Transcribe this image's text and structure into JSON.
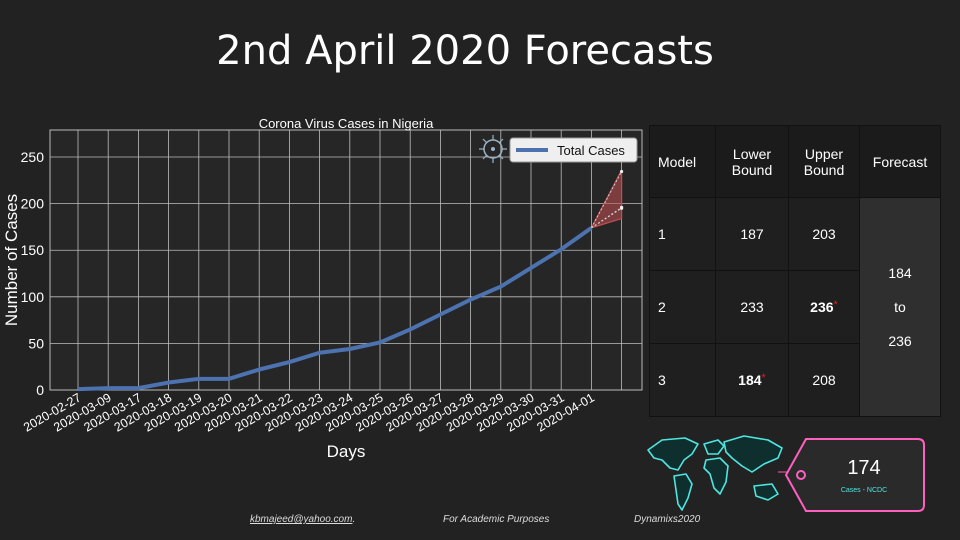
{
  "page": {
    "title": "2nd April 2020 Forecasts"
  },
  "chart_data": {
    "type": "line",
    "title": "Corona Virus Cases in Nigeria",
    "xlabel": "Days",
    "ylabel": "Number of Cases",
    "categories": [
      "2020-02-27",
      "2020-03-09",
      "2020-03-17",
      "2020-03-18",
      "2020-03-19",
      "2020-03-20",
      "2020-03-21",
      "2020-03-22",
      "2020-03-23",
      "2020-03-24",
      "2020-03-25",
      "2020-03-26",
      "2020-03-27",
      "2020-03-28",
      "2020-03-29",
      "2020-03-30",
      "2020-03-31",
      "2020-04-01"
    ],
    "series": [
      {
        "name": "Total Cases",
        "color": "#4c72b0",
        "values": [
          1,
          2,
          2,
          8,
          12,
          12,
          22,
          30,
          40,
          44,
          51,
          65,
          81,
          97,
          111,
          131,
          151,
          174
        ]
      }
    ],
    "forecast_band": {
      "color": "#c44e52",
      "from": 174,
      "points": [
        [
          187,
          203
        ],
        [
          233,
          236
        ],
        [
          184,
          208
        ]
      ]
    },
    "yticks": [
      0,
      50,
      100,
      150,
      200,
      250
    ],
    "ylim": [
      0,
      279
    ],
    "grid": true,
    "legend_position": "top-right"
  },
  "table": {
    "headers": {
      "model": "Model",
      "lower": "Lower Bound",
      "upper": "Upper Bound",
      "forecast": "Forecast"
    },
    "rows": [
      {
        "model": "1",
        "lower": "187",
        "upper": "203"
      },
      {
        "model": "2",
        "lower": "233",
        "upper": "236"
      },
      {
        "model": "3",
        "lower": "184",
        "upper": "208"
      }
    ],
    "star": "*",
    "forecast_range": {
      "from": "184",
      "to_word": "to",
      "to": "236"
    }
  },
  "cases_tag": {
    "value": "174",
    "caption": "Cases - NCDC"
  },
  "footer": {
    "email": "kbmajeed@yahoo.com",
    "email_suffix": ".",
    "purpose": "For Academic Purposes",
    "brand": "Dynamixs2020"
  },
  "icons": {
    "virus": "virus-icon",
    "map": "world-map-icon"
  },
  "colors": {
    "background": "#222222",
    "series": "#4c72b0",
    "forecast": "#c44e52",
    "neon": "#4ee6e0",
    "tag": "#ff5fbf"
  }
}
